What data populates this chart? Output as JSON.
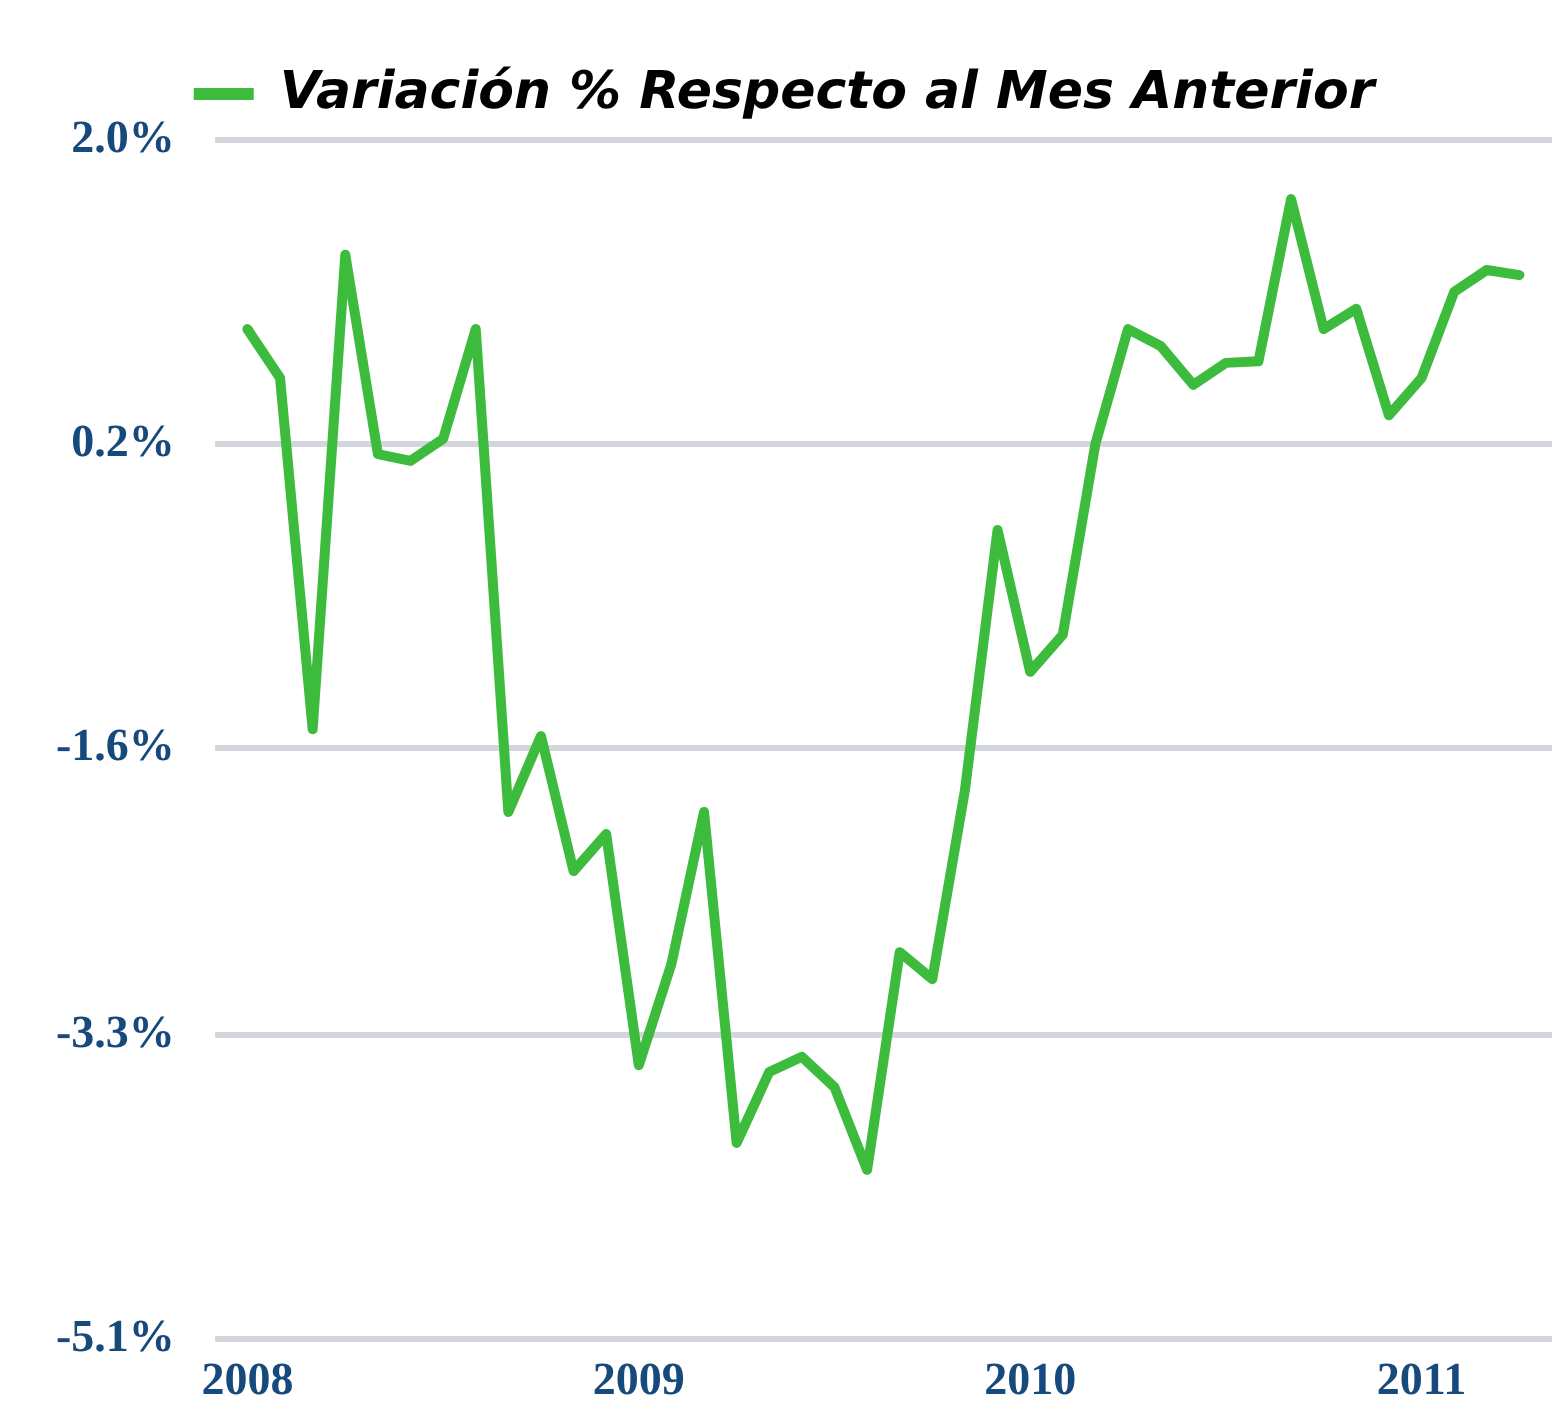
{
  "chart_data": {
    "type": "line",
    "x": [
      "2008-01",
      "2008-02",
      "2008-03",
      "2008-04",
      "2008-05",
      "2008-06",
      "2008-07",
      "2008-08",
      "2008-09",
      "2008-10",
      "2008-11",
      "2008-12",
      "2009-01",
      "2009-02",
      "2009-03",
      "2009-04",
      "2009-05",
      "2009-06",
      "2009-07",
      "2009-08",
      "2009-09",
      "2009-10",
      "2009-11",
      "2009-12",
      "2010-01",
      "2010-02",
      "2010-03",
      "2010-04",
      "2010-05",
      "2010-06",
      "2010-07",
      "2010-08",
      "2010-09",
      "2010-10",
      "2010-11",
      "2010-12",
      "2011-01",
      "2011-02",
      "2011-03",
      "2011-04"
    ],
    "series": [
      {
        "name": "Variación % Respecto al Mes Anterior",
        "color": "#3dbb3d",
        "values": [
          0.88,
          0.59,
          -1.49,
          1.32,
          0.14,
          0.1,
          0.23,
          0.88,
          -1.98,
          -1.53,
          -2.33,
          -2.11,
          -3.48,
          -2.88,
          -1.98,
          -3.94,
          -3.52,
          -3.43,
          -3.61,
          -4.1,
          -2.81,
          -2.97,
          -1.85,
          -0.31,
          -1.15,
          -0.93,
          0.2,
          0.88,
          0.78,
          0.55,
          0.68,
          0.69,
          1.65,
          0.88,
          1.0,
          0.37,
          0.59,
          1.1,
          1.23,
          1.2
        ]
      }
    ],
    "xlim": [
      "2007-12",
      "2011-05"
    ],
    "xticks": [
      "2008",
      "2009",
      "2010",
      "2011"
    ],
    "ylim": [
      -5.1,
      2.0
    ],
    "yticks": [
      {
        "value": 2.0,
        "label": "2.0%"
      },
      {
        "value": 0.2,
        "label": "0.2%"
      },
      {
        "value": -1.6,
        "label": "-1.6%"
      },
      {
        "value": -3.3,
        "label": "-3.3%"
      },
      {
        "value": -5.1,
        "label": "-5.1%"
      }
    ],
    "grid": "y",
    "legend": "top",
    "marker": "none",
    "line_style": "solid"
  }
}
